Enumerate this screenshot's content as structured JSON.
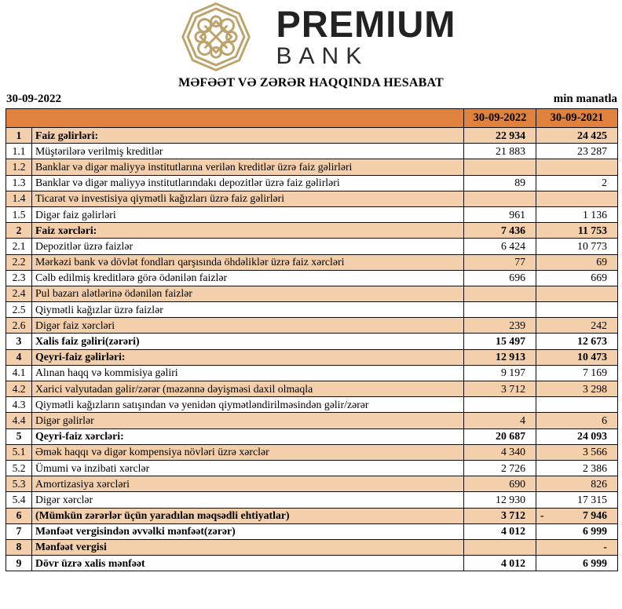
{
  "brand": {
    "name": "PREMIUM",
    "sub": "BANK"
  },
  "report": {
    "title": "MƏFƏƏT VƏ ZƏRƏR HAQQINDA HESABAT",
    "date": "30-09-2022",
    "unit": "min manatla"
  },
  "colors": {
    "header_bg": "#e0813e",
    "row_shade": "#f3cfab",
    "logo_gold": "#bda26a"
  },
  "table": {
    "col_headers": [
      "30-09-2022",
      "30-09-2021"
    ],
    "rows": [
      {
        "no": "1",
        "label": "Faiz gəlirləri:",
        "v2022": "22 934",
        "v2021": "24 425"
      },
      {
        "no": "1.1",
        "label": "Müştərilərə verilmiş kreditlər",
        "v2022": "21 883",
        "v2021": "23 287"
      },
      {
        "no": "1.2",
        "label": "Banklar və digər maliyyə institutlarına verilən kreditlər üzrə faiz gəlirləri",
        "v2022": "",
        "v2021": ""
      },
      {
        "no": "1.3",
        "label": "Banklar və digər maliyyə institutlarındakı depozitlər üzrə faiz gəlirləri",
        "v2022": "89",
        "v2021": "2"
      },
      {
        "no": "1.4",
        "label": "Ticarət və investisiya qiymətli kağızları üzrə faiz gəlirləri",
        "v2022": "",
        "v2021": ""
      },
      {
        "no": "1.5",
        "label": "Digər faiz gəlirləri",
        "v2022": "961",
        "v2021": "1 136"
      },
      {
        "no": "2",
        "label": "Faiz xərcləri:",
        "v2022": "7 436",
        "v2021": "11 753"
      },
      {
        "no": "2.1",
        "label": "Depozitlər üzrə faizlər",
        "v2022": "6 424",
        "v2021": "10 773"
      },
      {
        "no": "2.2",
        "label": "Mərkəzi bank və dövlət fondları qarşısında öhdəliklər üzrə faiz xərcləri",
        "v2022": "77",
        "v2021": "69"
      },
      {
        "no": "2.3",
        "label": "Cəlb edilmiş kreditlərə görə ödənilən faizlər",
        "v2022": "696",
        "v2021": "669"
      },
      {
        "no": "2.4",
        "label": "Pul bazarı alətlərinə ödənilən faizlər",
        "v2022": "",
        "v2021": ""
      },
      {
        "no": "2.5",
        "label": "Qiymətli kağızlar üzrə faizlər",
        "v2022": "",
        "v2021": ""
      },
      {
        "no": "2.6",
        "label": "Digər faiz xərcləri",
        "v2022": "239",
        "v2021": "242"
      },
      {
        "no": "3",
        "label": "Xalis faiz gəliri(zərəri)",
        "v2022": "15 497",
        "v2021": "12 673"
      },
      {
        "no": "4",
        "label": "Qeyri-faiz gəlirləri:",
        "v2022": "12 913",
        "v2021": "10 473"
      },
      {
        "no": "4.1",
        "label": "Alınan haqq və kommisiya gəliri",
        "v2022": "9 197",
        "v2021": "7 169"
      },
      {
        "no": "4.2",
        "label": "Xarici valyutadan gəlir/zərər (məzənnə dəyişməsi daxil olmaqla",
        "v2022": "3 712",
        "v2021": "3 298"
      },
      {
        "no": "4.3",
        "label": "Qiymətli kağızların satışından və yenidən qiymətləndirilməsindən gəlir/zərər",
        "v2022": "",
        "v2021": ""
      },
      {
        "no": "4.4",
        "label": "Digər gəlirlər",
        "v2022": "4",
        "v2021": "6"
      },
      {
        "no": "5",
        "label": "Qeyri-faiz xərcləri:",
        "v2022": "20 687",
        "v2021": "24 093"
      },
      {
        "no": "5.1",
        "label": "Əmək haqqı və digər kompensiya növləri üzrə xərclər",
        "v2022": "4 340",
        "v2021": "3 566"
      },
      {
        "no": "5.2",
        "label": "Ümumi və inzibati xərclər",
        "v2022": "2 726",
        "v2021": "2 386"
      },
      {
        "no": "5.3",
        "label": "Amortizasiya xərcləri",
        "v2022": "690",
        "v2021": "826"
      },
      {
        "no": "5.4",
        "label": "Digər xərclər",
        "v2022": "12 930",
        "v2021": "17 315"
      },
      {
        "no": "6",
        "label": "(Mümkün zərərlər üçün yaradılan məqsədli ehtiyatlar)",
        "v2022": "3 712",
        "v2021": "7 946",
        "v2021_prefix": "-"
      },
      {
        "no": "7",
        "label": "Mənfəət vergisindən əvvəlki mənfəət(zərər)",
        "v2022": "4 012",
        "v2021": "6 999"
      },
      {
        "no": "8",
        "label": "Mənfəət vergisi",
        "v2022": "",
        "v2021": "-"
      },
      {
        "no": "9",
        "label": "Dövr üzrə xalis mənfəət",
        "v2022": "4 012",
        "v2021": "6 999"
      }
    ]
  }
}
